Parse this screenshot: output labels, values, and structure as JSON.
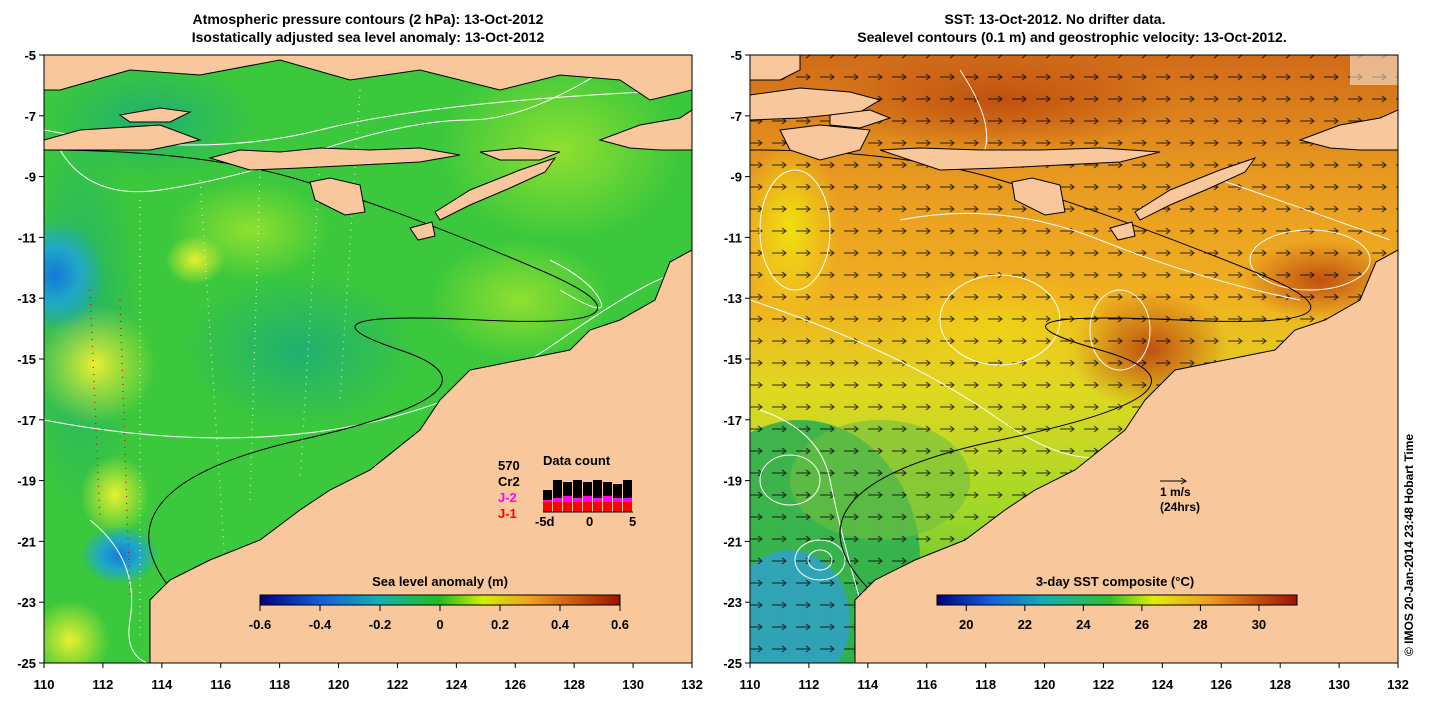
{
  "left_panel": {
    "title_line1": "Atmospheric pressure contours (2 hPa): 13-Oct-2012",
    "title_line2": "Isostatically adjusted sea level anomaly: 13-Oct-2012",
    "x_ticks": [
      "110",
      "112",
      "114",
      "116",
      "118",
      "120",
      "122",
      "124",
      "126",
      "128",
      "130",
      "132"
    ],
    "y_ticks": [
      "-5",
      "-7",
      "-9",
      "-11",
      "-13",
      "-15",
      "-17",
      "-19",
      "-21",
      "-23",
      "-25"
    ],
    "colorbar": {
      "label": "Sea level anomaly (m)",
      "ticks": [
        "-0.6",
        "-0.4",
        "-0.2",
        "0",
        "0.2",
        "0.4",
        "0.6"
      ]
    },
    "data_count": {
      "title": "Data count",
      "total": "570",
      "series": [
        {
          "name": "Cr2",
          "color": "#000000"
        },
        {
          "name": "J-2",
          "color": "#ff00ff"
        },
        {
          "name": "J-1",
          "color": "#ff0000"
        }
      ],
      "x_labels": [
        "-5d",
        "0",
        "5"
      ]
    }
  },
  "right_panel": {
    "title_line1": "SST: 13-Oct-2012. No drifter data.",
    "title_line2": "Sealevel contours (0.1 m) and geostrophic velocity: 13-Oct-2012.",
    "x_ticks": [
      "110",
      "112",
      "114",
      "116",
      "118",
      "120",
      "122",
      "124",
      "126",
      "128",
      "130",
      "132"
    ],
    "y_ticks": [
      "-5",
      "-7",
      "-9",
      "-11",
      "-13",
      "-15",
      "-17",
      "-19",
      "-21",
      "-23",
      "-25"
    ],
    "colorbar": {
      "label": "3-day SST composite (°C)",
      "ticks": [
        "20",
        "22",
        "24",
        "26",
        "28",
        "30"
      ]
    },
    "velocity_scale": {
      "line1": "1 m/s",
      "line2": "(24hrs)"
    }
  },
  "credit": "© IMOS 20-Jan-2014 23:48 Hobart Time",
  "colors": {
    "land": "#f8c89c",
    "sla_ocean": "#3cc83c",
    "sst_warm": "#e08a20",
    "sst_mid": "#f0d000",
    "sst_cool": "#30b050",
    "contour": "#ffffff",
    "bathy": "#000000"
  }
}
